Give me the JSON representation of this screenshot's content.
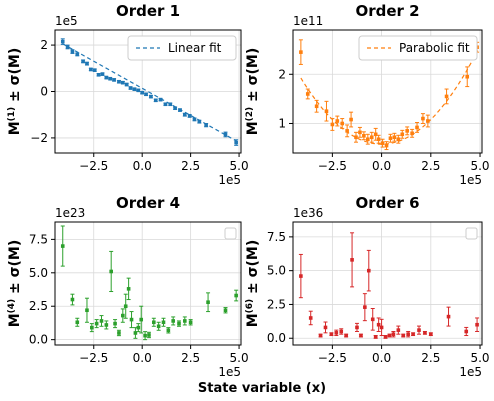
{
  "chart_data": [
    {
      "type": "scatter",
      "title": "Order 1",
      "ylabel": "M(1) ± σ(M)",
      "ylabel_base": "M",
      "ylabel_sup": "(1)",
      "ylabel_tail": " ± σ(M)",
      "color": "#1f77b4",
      "x_exponent": "1e5",
      "y_exponent": "1e5",
      "x_ticks": [
        -2.5,
        0.0,
        2.5,
        5.0
      ],
      "x_tick_labels": [
        "−2.5",
        "0.0",
        "2.5",
        "5.0"
      ],
      "y_ticks": [
        -2,
        0,
        2
      ],
      "y_tick_labels": [
        "−2",
        "0",
        "2"
      ],
      "xlim": [
        -4.5,
        5.1
      ],
      "ylim": [
        -2.65,
        2.65
      ],
      "legend": {
        "label": "Linear fit",
        "placement": "top-right"
      },
      "fit": {
        "type": "linear",
        "x": [
          -4.1,
          4.9
        ],
        "y": [
          2.05,
          -2.15
        ]
      },
      "points": [
        {
          "x": -4.1,
          "y": 2.15,
          "err": 0.12
        },
        {
          "x": -3.85,
          "y": 1.92,
          "err": 0.08
        },
        {
          "x": -3.6,
          "y": 1.72,
          "err": 0.08
        },
        {
          "x": -3.35,
          "y": 1.6,
          "err": 0.06
        },
        {
          "x": -3.05,
          "y": 1.3,
          "err": 0.06
        },
        {
          "x": -2.85,
          "y": 1.2,
          "err": 0.06
        },
        {
          "x": -2.65,
          "y": 0.95,
          "err": 0.05
        },
        {
          "x": -2.45,
          "y": 0.92,
          "err": 0.05
        },
        {
          "x": -2.25,
          "y": 0.72,
          "err": 0.05
        },
        {
          "x": -2.05,
          "y": 0.75,
          "err": 0.05
        },
        {
          "x": -1.85,
          "y": 0.6,
          "err": 0.05
        },
        {
          "x": -1.65,
          "y": 0.55,
          "err": 0.05
        },
        {
          "x": -1.45,
          "y": 0.5,
          "err": 0.05
        },
        {
          "x": -1.2,
          "y": 0.42,
          "err": 0.05
        },
        {
          "x": -1.0,
          "y": 0.38,
          "err": 0.05
        },
        {
          "x": -0.8,
          "y": 0.3,
          "err": 0.05
        },
        {
          "x": -0.6,
          "y": 0.15,
          "err": 0.05
        },
        {
          "x": -0.4,
          "y": 0.1,
          "err": 0.05
        },
        {
          "x": -0.2,
          "y": 0.05,
          "err": 0.05
        },
        {
          "x": 0.0,
          "y": -0.05,
          "err": 0.05
        },
        {
          "x": 0.2,
          "y": -0.12,
          "err": 0.05
        },
        {
          "x": 0.45,
          "y": -0.22,
          "err": 0.05
        },
        {
          "x": 0.7,
          "y": -0.38,
          "err": 0.05
        },
        {
          "x": 0.95,
          "y": -0.35,
          "err": 0.05
        },
        {
          "x": 1.2,
          "y": -0.55,
          "err": 0.05
        },
        {
          "x": 1.45,
          "y": -0.55,
          "err": 0.05
        },
        {
          "x": 1.7,
          "y": -0.72,
          "err": 0.05
        },
        {
          "x": 1.95,
          "y": -0.8,
          "err": 0.05
        },
        {
          "x": 2.2,
          "y": -1.0,
          "err": 0.06
        },
        {
          "x": 2.45,
          "y": -1.05,
          "err": 0.06
        },
        {
          "x": 2.7,
          "y": -1.2,
          "err": 0.06
        },
        {
          "x": 2.95,
          "y": -1.3,
          "err": 0.06
        },
        {
          "x": 3.3,
          "y": -1.45,
          "err": 0.07
        },
        {
          "x": 4.3,
          "y": -1.85,
          "err": 0.1
        },
        {
          "x": 4.85,
          "y": -2.2,
          "err": 0.12
        }
      ]
    },
    {
      "type": "scatter",
      "title": "Order 2",
      "ylabel": "M(2) ± σ(M)",
      "ylabel_base": "M",
      "ylabel_sup": "(2)",
      "ylabel_tail": " ± σ(M)",
      "color": "#ff7f0e",
      "x_exponent": "1e5",
      "y_exponent": "1e11",
      "x_ticks": [
        -2.5,
        0.0,
        2.5,
        5.0
      ],
      "x_tick_labels": [
        "−2.5",
        "0.0",
        "2.5",
        "5.0"
      ],
      "y_ticks": [
        1,
        2
      ],
      "y_tick_labels": [
        "1",
        "2"
      ],
      "xlim": [
        -4.5,
        5.1
      ],
      "ylim": [
        0.4,
        2.9
      ],
      "legend": {
        "label": "Parabolic fit",
        "placement": "top-right"
      },
      "fit": {
        "type": "parabola",
        "a": 0.08,
        "b": 0.0,
        "c": 0.58
      },
      "points": [
        {
          "x": -4.1,
          "y": 2.45,
          "err": 0.25
        },
        {
          "x": -3.75,
          "y": 1.6,
          "err": 0.1
        },
        {
          "x": -3.3,
          "y": 1.35,
          "err": 0.12
        },
        {
          "x": -2.8,
          "y": 1.25,
          "err": 0.2
        },
        {
          "x": -2.5,
          "y": 0.98,
          "err": 0.12
        },
        {
          "x": -2.25,
          "y": 1.05,
          "err": 0.1
        },
        {
          "x": -2.0,
          "y": 1.0,
          "err": 0.1
        },
        {
          "x": -1.75,
          "y": 0.85,
          "err": 0.12
        },
        {
          "x": -1.55,
          "y": 1.08,
          "err": 0.15
        },
        {
          "x": -1.3,
          "y": 0.72,
          "err": 0.1
        },
        {
          "x": -1.1,
          "y": 0.82,
          "err": 0.1
        },
        {
          "x": -0.9,
          "y": 0.75,
          "err": 0.08
        },
        {
          "x": -0.7,
          "y": 0.68,
          "err": 0.1
        },
        {
          "x": -0.5,
          "y": 0.72,
          "err": 0.1
        },
        {
          "x": -0.3,
          "y": 0.78,
          "err": 0.12
        },
        {
          "x": -0.15,
          "y": 0.68,
          "err": 0.08
        },
        {
          "x": 0.05,
          "y": 0.6,
          "err": 0.08
        },
        {
          "x": 0.25,
          "y": 0.55,
          "err": 0.08
        },
        {
          "x": 0.45,
          "y": 0.7,
          "err": 0.08
        },
        {
          "x": 0.65,
          "y": 0.72,
          "err": 0.08
        },
        {
          "x": 0.85,
          "y": 0.68,
          "err": 0.08
        },
        {
          "x": 1.05,
          "y": 0.78,
          "err": 0.08
        },
        {
          "x": 1.3,
          "y": 0.85,
          "err": 0.08
        },
        {
          "x": 1.55,
          "y": 0.8,
          "err": 0.08
        },
        {
          "x": 1.8,
          "y": 0.92,
          "err": 0.1
        },
        {
          "x": 2.1,
          "y": 1.1,
          "err": 0.1
        },
        {
          "x": 2.35,
          "y": 1.05,
          "err": 0.12
        },
        {
          "x": 3.3,
          "y": 1.55,
          "err": 0.15
        },
        {
          "x": 4.35,
          "y": 1.95,
          "err": 0.2
        },
        {
          "x": 4.85,
          "y": 2.55,
          "err": 0.1
        }
      ]
    },
    {
      "type": "scatter",
      "title": "Order 4",
      "ylabel": "M(4) ± σ(M)",
      "ylabel_base": "M",
      "ylabel_sup": "(4)",
      "ylabel_tail": " ± σ(M)",
      "color": "#2ca02c",
      "x_exponent": "1e5",
      "y_exponent": "1e23",
      "x_ticks": [
        -2.5,
        0.0,
        2.5,
        5.0
      ],
      "x_tick_labels": [
        "−2.5",
        "0.0",
        "2.5",
        "5.0"
      ],
      "y_ticks": [
        0.0,
        2.5,
        5.0,
        7.5
      ],
      "y_tick_labels": [
        "0.0",
        "2.5",
        "5.0",
        "7.5"
      ],
      "xlim": [
        -4.5,
        5.1
      ],
      "ylim": [
        -0.4,
        8.8
      ],
      "legend": {
        "label": "",
        "placement": "top-right"
      },
      "points": [
        {
          "x": -4.1,
          "y": 7.0,
          "err": 1.5
        },
        {
          "x": -3.6,
          "y": 3.0,
          "err": 0.4
        },
        {
          "x": -3.35,
          "y": 1.3,
          "err": 0.3
        },
        {
          "x": -2.85,
          "y": 2.2,
          "err": 0.9
        },
        {
          "x": -2.6,
          "y": 0.9,
          "err": 0.3
        },
        {
          "x": -2.35,
          "y": 1.2,
          "err": 0.3
        },
        {
          "x": -2.1,
          "y": 1.4,
          "err": 0.4
        },
        {
          "x": -1.85,
          "y": 1.1,
          "err": 0.3
        },
        {
          "x": -1.6,
          "y": 5.1,
          "err": 1.5
        },
        {
          "x": -1.4,
          "y": 1.2,
          "err": 0.3
        },
        {
          "x": -1.2,
          "y": 0.5,
          "err": 0.2
        },
        {
          "x": -1.0,
          "y": 1.8,
          "err": 0.5
        },
        {
          "x": -0.85,
          "y": 2.5,
          "err": 0.9
        },
        {
          "x": -0.7,
          "y": 3.8,
          "err": 0.8
        },
        {
          "x": -0.55,
          "y": 1.5,
          "err": 0.6
        },
        {
          "x": -0.35,
          "y": 0.5,
          "err": 0.4
        },
        {
          "x": -0.2,
          "y": 0.9,
          "err": 0.3
        },
        {
          "x": -0.05,
          "y": 1.5,
          "err": 1.0
        },
        {
          "x": 0.15,
          "y": 0.3,
          "err": 0.3
        },
        {
          "x": 0.35,
          "y": 0.35,
          "err": 0.2
        },
        {
          "x": 0.6,
          "y": 1.3,
          "err": 0.3
        },
        {
          "x": 0.85,
          "y": 1.0,
          "err": 0.3
        },
        {
          "x": 1.1,
          "y": 1.3,
          "err": 0.3
        },
        {
          "x": 1.35,
          "y": 0.7,
          "err": 0.2
        },
        {
          "x": 1.6,
          "y": 1.4,
          "err": 0.3
        },
        {
          "x": 1.9,
          "y": 1.2,
          "err": 0.2
        },
        {
          "x": 2.2,
          "y": 1.4,
          "err": 0.3
        },
        {
          "x": 2.5,
          "y": 1.3,
          "err": 0.2
        },
        {
          "x": 3.4,
          "y": 2.8,
          "err": 0.7
        },
        {
          "x": 4.3,
          "y": 2.2,
          "err": 0.2
        },
        {
          "x": 4.85,
          "y": 3.3,
          "err": 0.4
        }
      ]
    },
    {
      "type": "scatter",
      "title": "Order 6",
      "ylabel": "M(6) ± σ(M)",
      "ylabel_base": "M",
      "ylabel_sup": "(6)",
      "ylabel_tail": " ± σ(M)",
      "color": "#d62728",
      "x_exponent": "1e5",
      "y_exponent": "1e36",
      "x_ticks": [
        -2.5,
        0.0,
        2.5,
        5.0
      ],
      "x_tick_labels": [
        "−2.5",
        "0.0",
        "2.5",
        "5.0"
      ],
      "y_ticks": [
        0.0,
        2.5,
        5.0,
        7.5
      ],
      "y_tick_labels": [
        "0.0",
        "2.5",
        "5.0",
        "7.5"
      ],
      "xlim": [
        -4.5,
        5.1
      ],
      "ylim": [
        -0.5,
        8.6
      ],
      "legend": {
        "label": "",
        "placement": "top-right"
      },
      "points": [
        {
          "x": -4.1,
          "y": 4.6,
          "err": 1.6
        },
        {
          "x": -3.6,
          "y": 1.5,
          "err": 0.5
        },
        {
          "x": -3.1,
          "y": 0.2,
          "err": 0.1
        },
        {
          "x": -2.85,
          "y": 0.8,
          "err": 0.4
        },
        {
          "x": -2.55,
          "y": 0.3,
          "err": 0.1
        },
        {
          "x": -2.3,
          "y": 0.4,
          "err": 0.2
        },
        {
          "x": -2.05,
          "y": 0.5,
          "err": 0.2
        },
        {
          "x": -1.8,
          "y": 0.2,
          "err": 0.1
        },
        {
          "x": -1.5,
          "y": 5.8,
          "err": 2.0
        },
        {
          "x": -1.25,
          "y": 0.8,
          "err": 0.3
        },
        {
          "x": -1.05,
          "y": 0.2,
          "err": 0.1
        },
        {
          "x": -0.85,
          "y": 2.3,
          "err": 1.0
        },
        {
          "x": -0.65,
          "y": 5.0,
          "err": 1.5
        },
        {
          "x": -0.45,
          "y": 1.4,
          "err": 0.8
        },
        {
          "x": -0.3,
          "y": 0.1,
          "err": 0.1
        },
        {
          "x": -0.15,
          "y": 1.0,
          "err": 0.5
        },
        {
          "x": 0.0,
          "y": 0.8,
          "err": 0.6
        },
        {
          "x": 0.2,
          "y": 0.1,
          "err": 0.1
        },
        {
          "x": 0.4,
          "y": 0.2,
          "err": 0.1
        },
        {
          "x": 0.6,
          "y": 0.3,
          "err": 0.2
        },
        {
          "x": 0.85,
          "y": 0.6,
          "err": 0.3
        },
        {
          "x": 1.1,
          "y": 0.2,
          "err": 0.1
        },
        {
          "x": 1.35,
          "y": 0.3,
          "err": 0.2
        },
        {
          "x": 1.6,
          "y": 0.3,
          "err": 0.1
        },
        {
          "x": 1.9,
          "y": 0.6,
          "err": 0.3
        },
        {
          "x": 2.2,
          "y": 0.4,
          "err": 0.1
        },
        {
          "x": 2.5,
          "y": 0.3,
          "err": 0.1
        },
        {
          "x": 3.4,
          "y": 1.6,
          "err": 0.7
        },
        {
          "x": 4.3,
          "y": 0.5,
          "err": 0.3
        },
        {
          "x": 4.85,
          "y": 1.0,
          "err": 0.5
        }
      ]
    }
  ],
  "shared_xlabel": "State variable (x)"
}
